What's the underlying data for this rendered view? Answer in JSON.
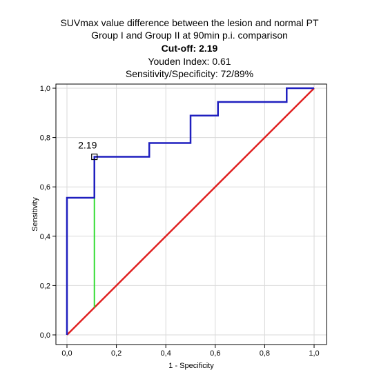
{
  "chart_data": {
    "type": "line",
    "title_lines": [
      "SUVmax value difference between the lesion and normal PT",
      "Group I and Group II at 90min p.i. comparison"
    ],
    "cutoff": {
      "label": "Cut-off:",
      "value": "2.19"
    },
    "youden_text": "Youden Index: 0.61",
    "sens_spec_text": "Sensitivity/Specificity: 72/89%",
    "xlabel": "1 - Specificity",
    "ylabel": "Sensitivity",
    "xlim": [
      0,
      1
    ],
    "ylim": [
      0,
      1
    ],
    "x_ticks": [
      "0,0",
      "0,2",
      "0,4",
      "0,6",
      "0,8",
      "1,0"
    ],
    "y_ticks": [
      "0,0",
      "0,2",
      "0,4",
      "0,6",
      "0,8",
      "1,0"
    ],
    "grid": true,
    "series": [
      {
        "color": "#1f1fbf",
        "x": [
          0,
          0,
          0.111,
          0.111,
          0.333,
          0.333,
          0.5,
          0.5,
          0.611,
          0.611,
          0.889,
          0.889,
          1
        ],
        "y": [
          0,
          0.556,
          0.556,
          0.722,
          0.722,
          0.778,
          0.778,
          0.889,
          0.889,
          0.944,
          0.944,
          1,
          1
        ]
      },
      {
        "color": "#e01f1f",
        "x": [
          0,
          1
        ],
        "y": [
          0,
          1
        ]
      }
    ],
    "youden_line": {
      "color": "#33dd33",
      "x": [
        0.111,
        0.111
      ],
      "y": [
        0.111,
        0.722
      ]
    },
    "marker": {
      "x": 0.111,
      "y": 0.722,
      "label": "2.19"
    }
  }
}
